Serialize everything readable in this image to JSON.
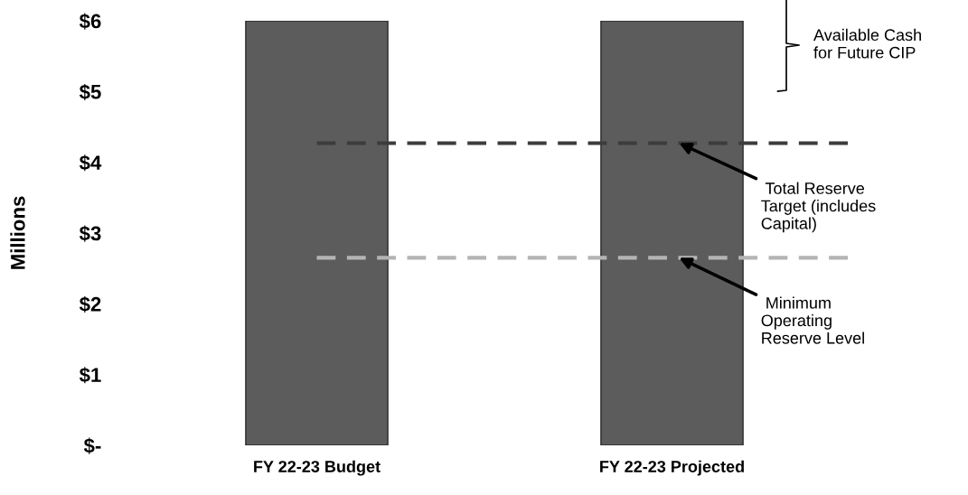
{
  "chart_data": {
    "type": "bar",
    "ylabel": "Millions",
    "categories": [
      "FY 22-23 Budget",
      "FY 22-23 Projected"
    ],
    "values": [
      6,
      6
    ],
    "color": "#5c5c5c",
    "ylim": [
      0,
      6
    ],
    "yticks": [
      {
        "value": 0,
        "label": "$-"
      },
      {
        "value": 1,
        "label": "$1"
      },
      {
        "value": 2,
        "label": "$2"
      },
      {
        "value": 3,
        "label": "$3"
      },
      {
        "value": 4,
        "label": "$4"
      },
      {
        "value": 5,
        "label": "$5"
      },
      {
        "value": 6,
        "label": "$6"
      }
    ],
    "grid": false,
    "ref_lines": [
      {
        "axis": "y",
        "value": 4.27,
        "label": " Total Reserve\nTarget (includes\nCapital)",
        "color": "#3c3c3c",
        "line_style": "dashed"
      },
      {
        "axis": "y",
        "value": 2.65,
        "label": " Minimum\nOperating\nReserve Level",
        "color": "#b4b4b4",
        "line_style": "dashed"
      }
    ],
    "annotations": [
      "Available Cash\nfor Future CIP"
    ]
  }
}
